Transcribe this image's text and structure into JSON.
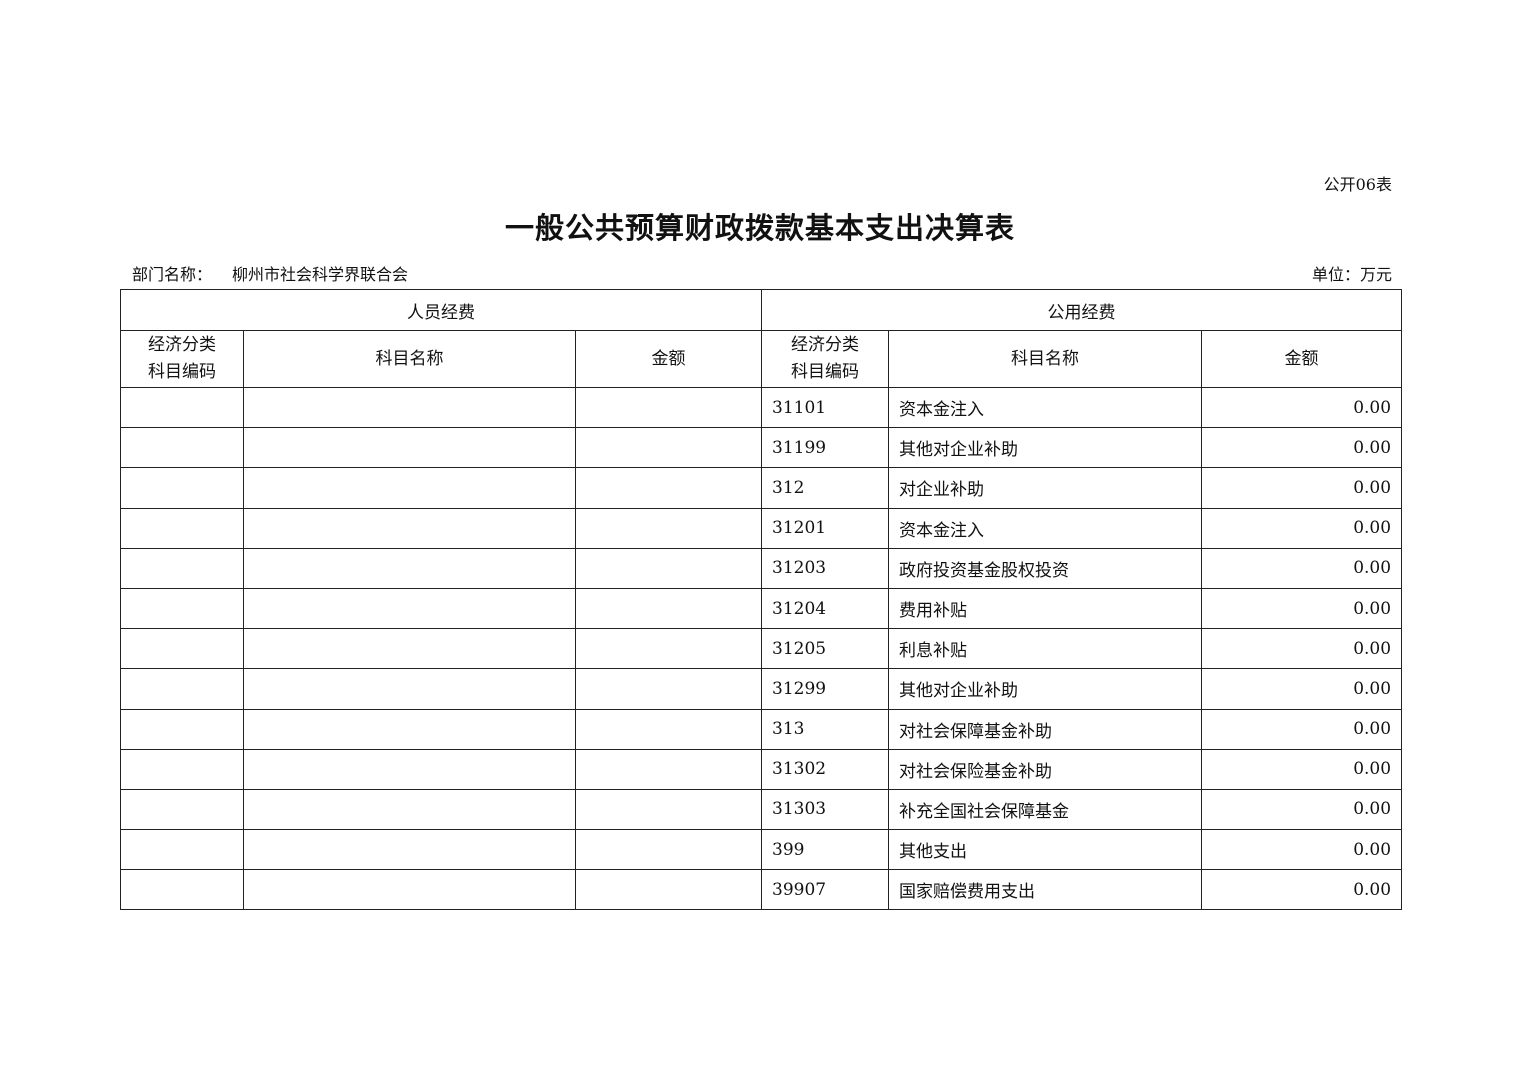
{
  "form_number": "公开06表",
  "title": "一般公共预算财政拨款基本支出决算表",
  "department_label": "部门名称：",
  "department_name": "柳州市社会科学界联合会",
  "unit": "单位：万元",
  "table": {
    "group_headers": [
      "人员经费",
      "公用经费"
    ],
    "column_headers": {
      "code_line1": "经济分类",
      "code_line2": "科目编码",
      "name": "科目名称",
      "amount": "金额"
    },
    "personnel_rows": [],
    "public_rows": [
      {
        "code": "31101",
        "name": "资本金注入",
        "amount": "0.00"
      },
      {
        "code": "31199",
        "name": "其他对企业补助",
        "amount": "0.00"
      },
      {
        "code": "312",
        "name": "对企业补助",
        "amount": "0.00"
      },
      {
        "code": "31201",
        "name": "资本金注入",
        "amount": "0.00"
      },
      {
        "code": "31203",
        "name": "政府投资基金股权投资",
        "amount": "0.00"
      },
      {
        "code": "31204",
        "name": "费用补贴",
        "amount": "0.00"
      },
      {
        "code": "31205",
        "name": "利息补贴",
        "amount": "0.00"
      },
      {
        "code": "31299",
        "name": "其他对企业补助",
        "amount": "0.00"
      },
      {
        "code": "313",
        "name": "对社会保障基金补助",
        "amount": "0.00"
      },
      {
        "code": "31302",
        "name": "对社会保险基金补助",
        "amount": "0.00"
      },
      {
        "code": "31303",
        "name": "补充全国社会保障基金",
        "amount": "0.00"
      },
      {
        "code": "399",
        "name": "其他支出",
        "amount": "0.00"
      },
      {
        "code": "39907",
        "name": "国家赔偿费用支出",
        "amount": "0.00"
      }
    ]
  }
}
